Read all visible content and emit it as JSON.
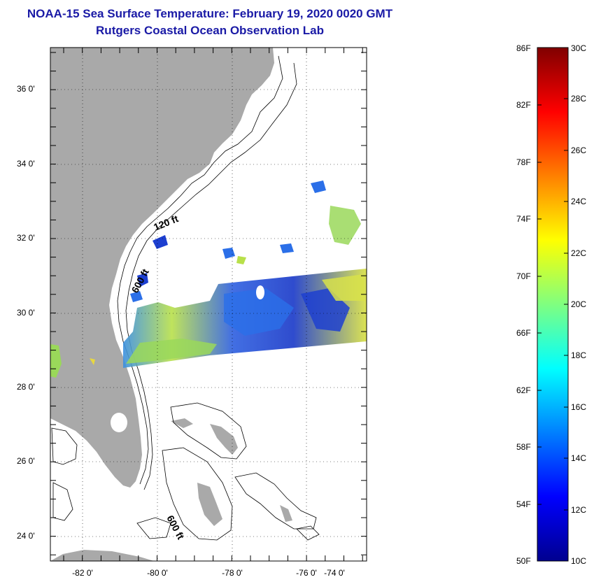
{
  "header": {
    "title": "NOAA-15 Sea Surface Temperature:  February 19, 2020 0020 GMT",
    "subtitle": "Rutgers Coastal Ocean Observation Lab"
  },
  "map": {
    "lat_labels": [
      "36 0'",
      "34 0'",
      "32 0'",
      "30 0'",
      "28 0'",
      "26 0'",
      "24 0'"
    ],
    "lon_labels": [
      "-82 0'",
      "-80 0'",
      "-78 0'",
      "-76 0'",
      "-74 0'"
    ],
    "depth_labels": [
      "120 ft",
      "600 ft",
      "600 ft"
    ],
    "land_color": "#a9a9a9",
    "ocean_color": "#ffffff"
  },
  "colorbar": {
    "fahrenheit_labels": [
      "86F",
      "82F",
      "78F",
      "74F",
      "70F",
      "66F",
      "62F",
      "58F",
      "54F",
      "50F"
    ],
    "celsius_labels": [
      "30C",
      "28C",
      "26C",
      "24C",
      "22C",
      "20C",
      "18C",
      "16C",
      "14C",
      "12C",
      "10C"
    ],
    "colormap": "jet",
    "range_c": [
      10,
      30
    ]
  }
}
